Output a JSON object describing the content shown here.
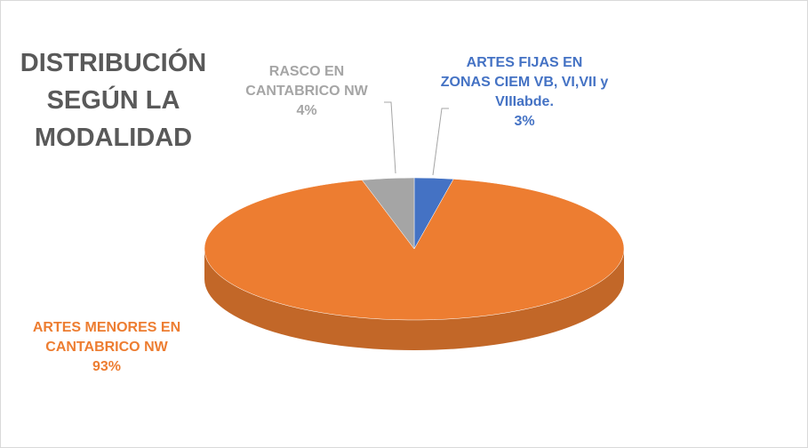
{
  "chart_data": {
    "type": "pie3d",
    "title": "DISTRIBUCIÓN SEGÚN LA MODALIDAD",
    "categories": [
      "ARTES FIJAS EN ZONAS CIEM VB, VI,VII y VIIIabde.",
      "ARTES MENORES EN CANTABRICO NW",
      "RASCO EN CANTABRICO NW"
    ],
    "values": [
      3,
      93,
      4
    ],
    "value_labels": [
      "3%",
      "93%",
      "4%"
    ],
    "colors": [
      "#4472c4",
      "#ed7d31",
      "#a5a5a5"
    ]
  }
}
